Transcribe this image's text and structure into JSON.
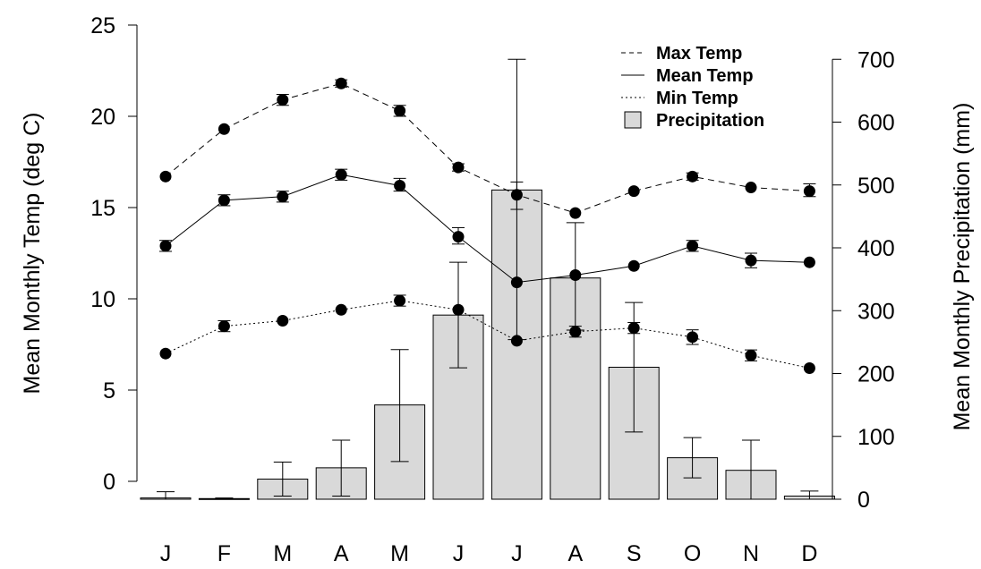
{
  "chart_data": {
    "type": "bar",
    "categories": [
      "J",
      "F",
      "M",
      "A",
      "M",
      "J",
      "J",
      "A",
      "S",
      "O",
      "N",
      "D"
    ],
    "ylabel": "Mean Monthly Temp (deg C)",
    "y2label": "Mean Monthly Precipitation (mm)",
    "ylim": [
      -1,
      26
    ],
    "y2lim": [
      0,
      700
    ],
    "yticks": [
      0,
      5,
      10,
      15,
      20,
      25
    ],
    "y2ticks": [
      0,
      100,
      200,
      300,
      400,
      500,
      600,
      700
    ],
    "legend_position": "top-right",
    "legend": [
      {
        "label": "Max Temp",
        "style": "dashed"
      },
      {
        "label": "Mean Temp",
        "style": "solid"
      },
      {
        "label": "Min Temp",
        "style": "dotted"
      },
      {
        "label": "Precipitation",
        "style": "box"
      }
    ],
    "precipitation": {
      "axis": "right",
      "color": "#d9d9d9",
      "values": [
        2,
        1,
        32,
        50,
        150,
        293,
        492,
        352,
        210,
        66,
        46,
        5
      ],
      "err_low": [
        0,
        0,
        5,
        5,
        60,
        209,
        254,
        269,
        107,
        34,
        0,
        0
      ],
      "err_high": [
        12,
        2,
        59,
        94,
        238,
        377,
        700,
        440,
        313,
        98,
        94,
        13
      ]
    },
    "series": [
      {
        "name": "Max Temp",
        "style": "dashed",
        "axis": "left",
        "values": [
          16.7,
          19.3,
          20.9,
          21.8,
          20.3,
          17.2,
          15.7,
          14.7,
          15.9,
          16.7,
          16.1,
          15.9
        ],
        "err_low": [
          16.7,
          19.3,
          20.6,
          21.6,
          20.0,
          17.0,
          14.9,
          14.7,
          15.9,
          16.5,
          16.1,
          15.6
        ],
        "err_high": [
          16.7,
          19.3,
          21.2,
          22.0,
          20.6,
          17.4,
          16.4,
          14.7,
          15.9,
          16.9,
          16.1,
          16.3
        ]
      },
      {
        "name": "Mean Temp",
        "style": "solid",
        "axis": "left",
        "values": [
          12.9,
          15.4,
          15.6,
          16.8,
          16.2,
          13.4,
          10.9,
          11.3,
          11.8,
          12.9,
          12.1,
          12.0
        ],
        "err_low": [
          12.6,
          15.1,
          15.3,
          16.5,
          15.9,
          13.0,
          10.9,
          11.3,
          11.8,
          12.6,
          11.7,
          12.0
        ],
        "err_high": [
          13.2,
          15.7,
          15.9,
          17.1,
          16.6,
          13.9,
          10.9,
          11.3,
          11.8,
          13.2,
          12.5,
          12.0
        ]
      },
      {
        "name": "Min Temp",
        "style": "dotted",
        "axis": "left",
        "values": [
          7.0,
          8.5,
          8.8,
          9.4,
          9.9,
          9.4,
          7.7,
          8.2,
          8.4,
          7.9,
          6.9,
          6.2
        ],
        "err_low": [
          7.0,
          8.2,
          8.8,
          9.4,
          9.6,
          9.4,
          7.7,
          7.9,
          8.1,
          7.5,
          6.6,
          6.2
        ],
        "err_high": [
          7.0,
          8.8,
          8.8,
          9.4,
          10.2,
          9.4,
          7.7,
          8.5,
          8.7,
          8.3,
          7.2,
          6.2
        ]
      }
    ]
  }
}
